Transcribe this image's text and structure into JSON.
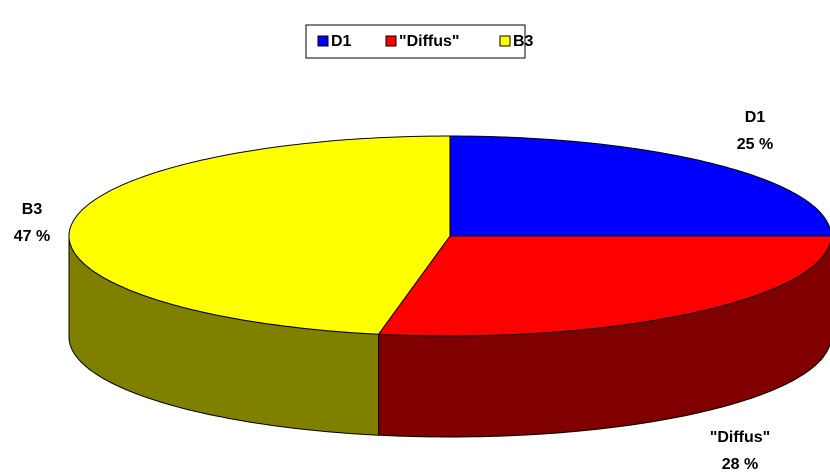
{
  "chart_data": {
    "type": "pie3d",
    "categories": [
      "D1",
      "\"Diffus\"",
      "B3"
    ],
    "values": [
      25,
      28,
      47
    ],
    "value_labels": [
      "25 %",
      "28 %",
      "47 %"
    ],
    "colors": [
      "#0000ff",
      "#ff0000",
      "#ffff00"
    ],
    "side_colors": [
      "#000080",
      "#800000",
      "#808000"
    ],
    "legend": "top"
  }
}
